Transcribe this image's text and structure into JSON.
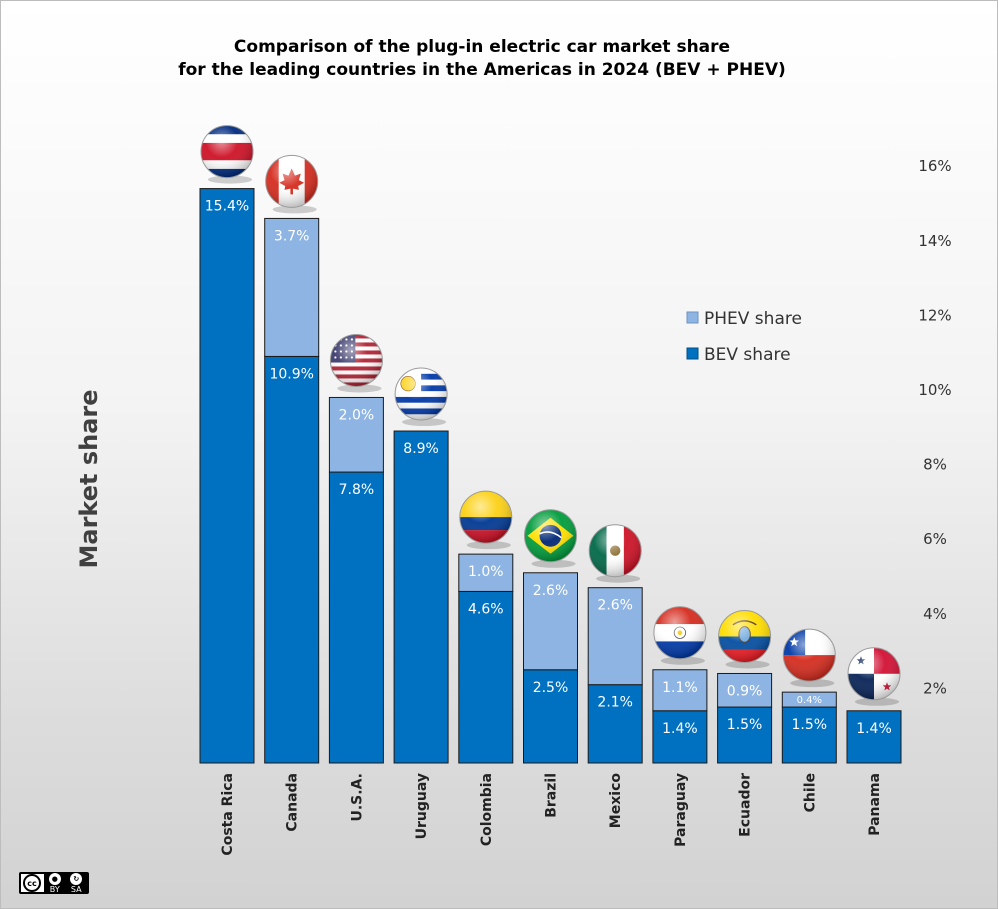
{
  "chart_data": {
    "type": "bar",
    "stacked": true,
    "title_lines": [
      "Comparison of the plug-in electric car market share",
      "for the leading countries in the Americas in 2024 (BEV + PHEV)"
    ],
    "ylabel": "Market share",
    "xlabel": "",
    "ylim": [
      0,
      16
    ],
    "yticks": [
      "2%",
      "4%",
      "6%",
      "8%",
      "10%",
      "12%",
      "14%",
      "16%"
    ],
    "categories": [
      "Costa Rica",
      "Canada",
      "U.S.A.",
      "Uruguay",
      "Colombia",
      "Brazil",
      "Mexico",
      "Paraguay",
      "Ecuador",
      "Chile",
      "Panama"
    ],
    "series": [
      {
        "name": "BEV share",
        "color": "#0070c0",
        "values": [
          15.4,
          10.9,
          7.8,
          8.9,
          4.6,
          2.5,
          2.1,
          1.4,
          1.5,
          1.5,
          1.4
        ],
        "labels": [
          "15.4%",
          "10.9%",
          "7.8%",
          "8.9%",
          "4.6%",
          "2.5%",
          "2.1%",
          "1.4%",
          "1.5%",
          "1.5%",
          "1.4%"
        ]
      },
      {
        "name": "PHEV share",
        "color": "#8db4e2",
        "values": [
          0,
          3.7,
          2.0,
          0,
          1.0,
          2.6,
          2.6,
          1.1,
          0.9,
          0.4,
          0
        ],
        "labels": [
          "",
          "3.7%",
          "2.0%",
          "",
          "1.0%",
          "2.6%",
          "2.6%",
          "1.1%",
          "0.9%",
          "0.4%",
          ""
        ]
      }
    ],
    "legend": {
      "position": "right",
      "entries": [
        "PHEV share",
        "BEV share"
      ]
    },
    "flags": [
      "costa-rica",
      "canada",
      "usa",
      "uruguay",
      "colombia",
      "brazil",
      "mexico",
      "paraguay",
      "ecuador",
      "chile",
      "panama"
    ],
    "grid": false
  },
  "license_badge": {
    "icon": "creative-commons-by-sa-icon",
    "mark": "cc",
    "by": "BY",
    "sa": "SA"
  }
}
